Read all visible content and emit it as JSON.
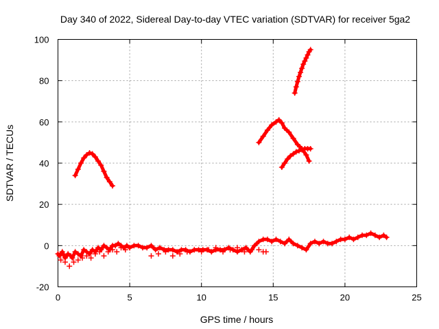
{
  "chart_data": {
    "type": "scatter",
    "title": "Day 340 of 2022, Sidereal Day-to-day VTEC variation (SDTVAR) for receiver 5ga2",
    "xlabel": "GPS time / hours",
    "ylabel": "SDTVAR / TECUs",
    "xlim": [
      0,
      25
    ],
    "ylim": [
      -20,
      100
    ],
    "xticks": [
      0,
      5,
      10,
      15,
      20,
      25
    ],
    "yticks": [
      -20,
      0,
      20,
      40,
      60,
      80,
      100
    ],
    "grid": true,
    "marker": "+",
    "series": [
      {
        "name": "baseline tracks",
        "color": "#ff0000",
        "x": [
          0.0,
          0.1,
          0.3,
          0.5,
          0.7,
          0.9,
          1.0,
          1.2,
          1.4,
          1.6,
          1.8,
          2.0,
          2.2,
          2.4,
          2.6,
          2.8,
          3.0,
          3.2,
          3.4,
          3.6,
          3.8,
          4.0,
          4.2,
          4.4,
          4.6,
          4.8,
          5.0,
          5.3,
          5.6,
          5.9,
          6.2,
          6.5,
          6.8,
          7.1,
          7.4,
          7.7,
          8.0,
          8.3,
          8.6,
          8.9,
          9.2,
          9.5,
          9.8,
          10.1,
          10.4,
          10.7,
          11.0,
          11.3,
          11.6,
          11.9,
          12.2,
          12.5,
          12.8,
          13.1,
          13.4,
          13.7,
          14.0,
          14.3,
          14.6,
          14.9,
          15.2,
          15.5,
          15.8,
          16.1,
          16.4,
          16.7,
          17.0,
          17.3,
          17.6,
          17.9,
          18.2,
          18.5,
          18.8,
          19.1,
          19.4,
          19.7,
          20.0,
          20.3,
          20.6,
          20.9,
          21.2,
          21.5,
          21.8,
          22.1,
          22.4,
          22.7,
          22.9
        ],
        "y": [
          -4,
          -5,
          -3,
          -6,
          -4,
          -5,
          -6,
          -3,
          -4,
          -5,
          -2,
          -3,
          -4,
          -2,
          -3,
          -1,
          -2,
          0,
          -1,
          -2,
          0,
          0,
          1,
          0,
          -1,
          0,
          -1,
          0,
          0,
          -1,
          -1,
          0,
          -2,
          -1,
          -2,
          -2,
          -2,
          -3,
          -2,
          -2,
          -3,
          -2,
          -2,
          -2,
          -2,
          -3,
          -2,
          -2,
          -2,
          -1,
          -2,
          -3,
          -2,
          -1,
          -3,
          0,
          2,
          3,
          3,
          2,
          3,
          2,
          1,
          3,
          1,
          0,
          -1,
          -2,
          1,
          2,
          1,
          2,
          1,
          1,
          2,
          3,
          3,
          4,
          3,
          4,
          5,
          5,
          6,
          5,
          4,
          5,
          4
        ]
      },
      {
        "name": "lower scatter",
        "color": "#ff0000",
        "x": [
          0.2,
          0.5,
          0.8,
          1.1,
          1.4,
          1.7,
          2.0,
          2.3,
          2.6,
          2.9,
          3.2,
          3.5,
          3.8,
          4.1,
          4.4,
          4.7,
          5.0,
          6.5,
          7.0,
          7.5,
          8.0,
          8.5,
          9.0,
          9.5,
          10.0,
          10.5,
          11.0,
          11.5,
          12.0,
          12.5,
          13.0,
          13.5,
          14.0,
          14.3,
          14.5
        ],
        "y": [
          -7,
          -8,
          -10,
          -8,
          -7,
          -6,
          -5,
          -6,
          -4,
          -3,
          -5,
          -3,
          -2,
          -3,
          -1,
          -2,
          -1,
          -5,
          -4,
          -3,
          -5,
          -4,
          -3,
          -2,
          -3,
          -2,
          -1,
          -3,
          -2,
          -1,
          -3,
          -2,
          -2,
          -3,
          -3
        ]
      },
      {
        "name": "upper-left arc",
        "color": "#ff0000",
        "x": [
          1.2,
          1.4,
          1.6,
          1.8,
          2.0,
          2.2,
          2.4,
          2.6,
          2.8,
          3.0,
          3.2,
          3.4,
          3.6,
          3.8
        ],
        "y": [
          34,
          37,
          40,
          42.5,
          44,
          45,
          44.5,
          43,
          41,
          39,
          36,
          33,
          31,
          29
        ]
      },
      {
        "name": "mid-right arc",
        "color": "#ff0000",
        "x": [
          14.0,
          14.3,
          14.6,
          14.9,
          15.2,
          15.4,
          15.6,
          15.8,
          16.1,
          16.4,
          16.7,
          17.0,
          17.3,
          17.5
        ],
        "y": [
          50,
          53,
          56,
          58.5,
          60,
          61,
          59.5,
          57,
          55,
          52,
          49,
          47,
          44,
          41
        ]
      },
      {
        "name": "mid-right tail",
        "color": "#ff0000",
        "x": [
          15.6,
          15.8,
          16.0,
          16.2,
          16.4,
          16.6,
          16.8,
          17.0,
          17.2,
          17.4,
          17.6
        ],
        "y": [
          38,
          40,
          42,
          43.5,
          44.5,
          45.5,
          46,
          46.5,
          47,
          47,
          47
        ]
      },
      {
        "name": "top-right track",
        "color": "#ff0000",
        "x": [
          16.5,
          16.6,
          16.7,
          16.8,
          16.9,
          17.0,
          17.1,
          17.2,
          17.3,
          17.4,
          17.5,
          17.6
        ],
        "y": [
          74,
          77,
          79.5,
          82,
          84,
          86,
          88,
          89.5,
          91,
          92.5,
          94,
          95
        ]
      }
    ]
  }
}
